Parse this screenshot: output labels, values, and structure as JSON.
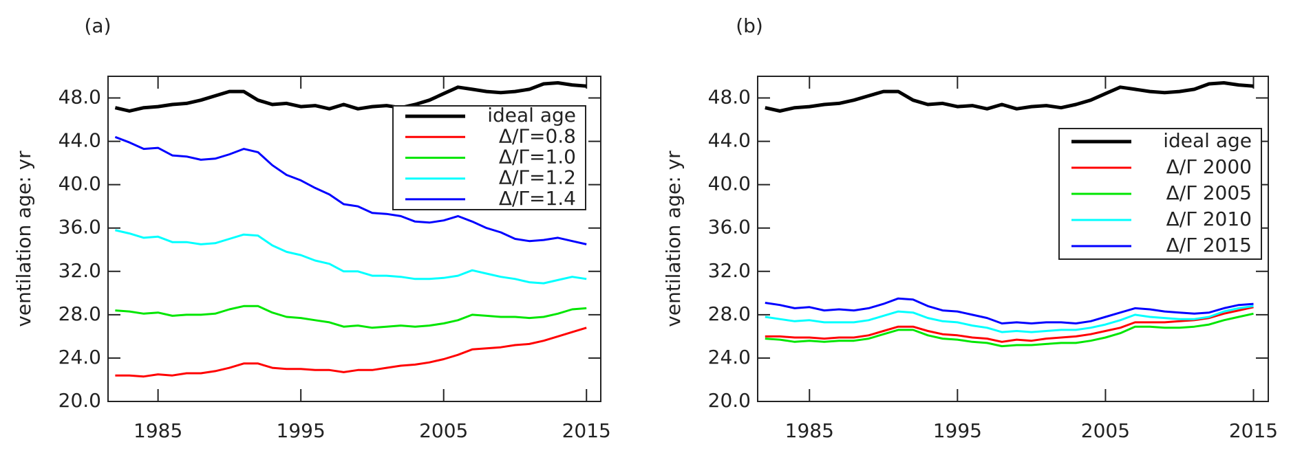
{
  "chart_data": [
    {
      "type": "line",
      "label": "(a)",
      "ylabel": "ventilation age: yr",
      "legend": "upper right",
      "x": [
        1982,
        1983,
        1984,
        1985,
        1986,
        1987,
        1988,
        1989,
        1990,
        1991,
        1992,
        1993,
        1994,
        1995,
        1996,
        1997,
        1998,
        1999,
        2000,
        2001,
        2002,
        2003,
        2004,
        2005,
        2006,
        2007,
        2008,
        2009,
        2010,
        2011,
        2012,
        2013,
        2014,
        2015
      ],
      "xlim": [
        1981.5,
        2016
      ],
      "xticks": [
        1985,
        1995,
        2005,
        2015
      ],
      "ylim": [
        20,
        50
      ],
      "yticks": [
        {
          "value": 20,
          "label": "20.0"
        },
        {
          "value": 24,
          "label": "24.0"
        },
        {
          "value": 28,
          "label": "28.0"
        },
        {
          "value": 32,
          "label": "32.0"
        },
        {
          "value": 36,
          "label": "36.0"
        },
        {
          "value": 40,
          "label": "40.0"
        },
        {
          "value": 44,
          "label": "44.0"
        },
        {
          "value": 48,
          "label": "48.0"
        }
      ],
      "series": [
        {
          "name": "ideal age",
          "color": "#000000",
          "values": [
            47.1,
            46.8,
            47.1,
            47.2,
            47.4,
            47.5,
            47.8,
            48.2,
            48.6,
            48.6,
            47.8,
            47.4,
            47.5,
            47.2,
            47.3,
            47.0,
            47.4,
            47.0,
            47.2,
            47.3,
            47.1,
            47.4,
            47.8,
            48.4,
            49.0,
            48.8,
            48.6,
            48.5,
            48.6,
            48.8,
            49.3,
            49.4,
            49.2,
            49.1
          ]
        },
        {
          "name": "Δ/Γ=0.8",
          "color": "#ff0000",
          "values": [
            22.4,
            22.4,
            22.3,
            22.5,
            22.4,
            22.6,
            22.6,
            22.8,
            23.1,
            23.5,
            23.5,
            23.1,
            23.0,
            23.0,
            22.9,
            22.9,
            22.7,
            22.9,
            22.9,
            23.1,
            23.3,
            23.4,
            23.6,
            23.9,
            24.3,
            24.8,
            24.9,
            25.0,
            25.2,
            25.3,
            25.6,
            26.0,
            26.4,
            26.8
          ]
        },
        {
          "name": "Δ/Γ=1.0",
          "color": "#00e600",
          "values": [
            28.4,
            28.3,
            28.1,
            28.2,
            27.9,
            28.0,
            28.0,
            28.1,
            28.5,
            28.8,
            28.8,
            28.2,
            27.8,
            27.7,
            27.5,
            27.3,
            26.9,
            27.0,
            26.8,
            26.9,
            27.0,
            26.9,
            27.0,
            27.2,
            27.5,
            28.0,
            27.9,
            27.8,
            27.8,
            27.7,
            27.8,
            28.1,
            28.5,
            28.6
          ]
        },
        {
          "name": "Δ/Γ=1.2",
          "color": "#00ffff",
          "values": [
            35.8,
            35.5,
            35.1,
            35.2,
            34.7,
            34.7,
            34.5,
            34.6,
            35.0,
            35.4,
            35.3,
            34.4,
            33.8,
            33.5,
            33.0,
            32.7,
            32.0,
            32.0,
            31.6,
            31.6,
            31.5,
            31.3,
            31.3,
            31.4,
            31.6,
            32.1,
            31.8,
            31.5,
            31.3,
            31.0,
            30.9,
            31.2,
            31.5,
            31.3
          ]
        },
        {
          "name": "Δ/Γ=1.4",
          "color": "#0000ff",
          "values": [
            44.4,
            43.9,
            43.3,
            43.4,
            42.7,
            42.6,
            42.3,
            42.4,
            42.8,
            43.3,
            43.0,
            41.8,
            40.9,
            40.4,
            39.7,
            39.1,
            38.2,
            38.0,
            37.4,
            37.3,
            37.1,
            36.6,
            36.5,
            36.7,
            37.1,
            36.6,
            36.0,
            35.6,
            35.0,
            34.8,
            34.9,
            35.1,
            34.8,
            34.5
          ]
        }
      ]
    },
    {
      "type": "line",
      "label": "(b)",
      "ylabel": "ventilation age: yr",
      "legend": "upper right",
      "x": [
        1982,
        1983,
        1984,
        1985,
        1986,
        1987,
        1988,
        1989,
        1990,
        1991,
        1992,
        1993,
        1994,
        1995,
        1996,
        1997,
        1998,
        1999,
        2000,
        2001,
        2002,
        2003,
        2004,
        2005,
        2006,
        2007,
        2008,
        2009,
        2010,
        2011,
        2012,
        2013,
        2014,
        2015
      ],
      "xlim": [
        1981.5,
        2016
      ],
      "xticks": [
        1985,
        1995,
        2005,
        2015
      ],
      "ylim": [
        20,
        50
      ],
      "yticks": [
        {
          "value": 20,
          "label": "20.0"
        },
        {
          "value": 24,
          "label": "24.0"
        },
        {
          "value": 28,
          "label": "28.0"
        },
        {
          "value": 32,
          "label": "32.0"
        },
        {
          "value": 36,
          "label": "36.0"
        },
        {
          "value": 40,
          "label": "40.0"
        },
        {
          "value": 44,
          "label": "44.0"
        },
        {
          "value": 48,
          "label": "48.0"
        }
      ],
      "series": [
        {
          "name": "ideal age",
          "color": "#000000",
          "values": [
            47.1,
            46.8,
            47.1,
            47.2,
            47.4,
            47.5,
            47.8,
            48.2,
            48.6,
            48.6,
            47.8,
            47.4,
            47.5,
            47.2,
            47.3,
            47.0,
            47.4,
            47.0,
            47.2,
            47.3,
            47.1,
            47.4,
            47.8,
            48.4,
            49.0,
            48.8,
            48.6,
            48.5,
            48.6,
            48.8,
            49.3,
            49.4,
            49.2,
            49.1
          ]
        },
        {
          "name": "Δ/Γ 2000",
          "color": "#ff0000",
          "values": [
            26.0,
            26.0,
            25.9,
            25.9,
            25.8,
            25.9,
            25.9,
            26.1,
            26.5,
            26.9,
            26.9,
            26.5,
            26.2,
            26.1,
            25.9,
            25.8,
            25.5,
            25.7,
            25.6,
            25.8,
            25.9,
            26.0,
            26.2,
            26.5,
            26.8,
            27.3,
            27.3,
            27.3,
            27.4,
            27.5,
            27.7,
            28.1,
            28.4,
            28.7
          ]
        },
        {
          "name": "Δ/Γ 2005",
          "color": "#00e600",
          "values": [
            25.8,
            25.7,
            25.5,
            25.6,
            25.5,
            25.6,
            25.6,
            25.8,
            26.2,
            26.6,
            26.6,
            26.1,
            25.8,
            25.7,
            25.5,
            25.4,
            25.1,
            25.2,
            25.2,
            25.3,
            25.4,
            25.4,
            25.6,
            25.9,
            26.3,
            26.9,
            26.9,
            26.8,
            26.8,
            26.9,
            27.1,
            27.5,
            27.8,
            28.1
          ]
        },
        {
          "name": "Δ/Γ 2010",
          "color": "#00ffff",
          "values": [
            27.8,
            27.6,
            27.4,
            27.5,
            27.3,
            27.3,
            27.3,
            27.5,
            27.9,
            28.3,
            28.2,
            27.7,
            27.4,
            27.3,
            27.0,
            26.8,
            26.4,
            26.5,
            26.4,
            26.5,
            26.6,
            26.6,
            26.8,
            27.1,
            27.5,
            28.0,
            27.8,
            27.7,
            27.6,
            27.6,
            27.8,
            28.3,
            28.6,
            28.8
          ]
        },
        {
          "name": "Δ/Γ 2015",
          "color": "#0000ff",
          "values": [
            29.1,
            28.9,
            28.6,
            28.7,
            28.4,
            28.5,
            28.4,
            28.6,
            29.0,
            29.5,
            29.4,
            28.8,
            28.4,
            28.3,
            28.0,
            27.7,
            27.2,
            27.3,
            27.2,
            27.3,
            27.3,
            27.2,
            27.4,
            27.8,
            28.2,
            28.6,
            28.5,
            28.3,
            28.2,
            28.1,
            28.2,
            28.6,
            28.9,
            29.0
          ]
        }
      ]
    }
  ]
}
